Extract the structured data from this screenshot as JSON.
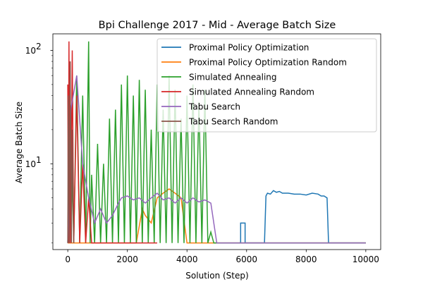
{
  "chart_data": {
    "type": "line",
    "title": "Bpi Challenge 2017 - Mid - Average Batch Size",
    "xlabel": "Solution (Step)",
    "ylabel": "Average Batch Size",
    "xlim": [
      -500,
      10500
    ],
    "ylim": [
      1.75,
      140
    ],
    "yscale": "log",
    "x_ticks": [
      0,
      2000,
      4000,
      6000,
      8000,
      10000
    ],
    "x_tick_labels": [
      "0",
      "2000",
      "4000",
      "6000",
      "8000",
      "10000"
    ],
    "y_ticks": [
      10,
      100
    ],
    "y_tick_labels": [
      "10^1",
      "10^2"
    ],
    "y_tick_base": "10",
    "y_tick_exponents": [
      "1",
      "2"
    ],
    "grid": false,
    "legend_position": "top-right",
    "series": [
      {
        "name": "Proximal Policy Optimization",
        "color": "#1f77b4",
        "x": [
          5750,
          5800,
          5800,
          5950,
          5950,
          6600,
          6650,
          6700,
          6800,
          6900,
          7000,
          7100,
          7200,
          7400,
          7600,
          7800,
          8000,
          8200,
          8400,
          8500,
          8600,
          8700,
          8750,
          8900,
          9000,
          9200,
          10000
        ],
        "y": [
          2.0,
          2.0,
          3.0,
          3.0,
          2.0,
          2.0,
          5.2,
          5.5,
          5.4,
          5.8,
          5.6,
          5.7,
          5.5,
          5.5,
          5.4,
          5.4,
          5.3,
          5.5,
          5.4,
          5.2,
          5.2,
          5.0,
          2.0,
          2.0,
          2.0,
          2.0,
          2.0
        ]
      },
      {
        "name": "Proximal Policy Optimization Random",
        "color": "#ff7f0e",
        "x": [
          0,
          100,
          200,
          300,
          2200,
          2300,
          2500,
          2600,
          2800,
          3000,
          3200,
          3400,
          3600,
          3800,
          4000,
          6000,
          6300,
          6500,
          7500,
          8000,
          8500,
          9000,
          10000
        ],
        "y": [
          2.0,
          2.0,
          2.0,
          2.0,
          2.0,
          2.0,
          4.0,
          3.5,
          3.0,
          5.0,
          5.5,
          6.0,
          5.5,
          5.0,
          2.0,
          2.0,
          2.0,
          2.0,
          2.0,
          2.0,
          2.0,
          2.0,
          2.0
        ]
      },
      {
        "name": "Simulated Annealing",
        "color": "#2ca02c",
        "x": [
          0,
          100,
          200,
          300,
          400,
          500,
          600,
          700,
          750,
          800,
          900,
          1000,
          1100,
          1200,
          1300,
          1400,
          1500,
          1600,
          1700,
          1800,
          1900,
          2000,
          2100,
          2200,
          2300,
          2400,
          2500,
          2600,
          2700,
          2800,
          2900,
          3000,
          3100,
          3200,
          3300,
          3400,
          3500,
          3600,
          3700,
          3800,
          3900,
          4000,
          4100,
          4200,
          4300,
          4400,
          4500,
          4600,
          4700,
          4800,
          4900,
          5000,
          5200,
          5500,
          5800,
          6200,
          6500,
          6800,
          7000,
          7300,
          7600,
          8000,
          8400,
          8800,
          9200,
          9600,
          10000
        ],
        "y": [
          2,
          30,
          2,
          60,
          2,
          40,
          2,
          120,
          2,
          8,
          2,
          15,
          2,
          10,
          2,
          25,
          2,
          30,
          2,
          50,
          2,
          60,
          2,
          40,
          2,
          55,
          2,
          45,
          2,
          20,
          2,
          50,
          2,
          30,
          2,
          60,
          2,
          45,
          2,
          25,
          2,
          40,
          2,
          50,
          2,
          35,
          2,
          45,
          2,
          2.5,
          2,
          2,
          2,
          2,
          2,
          2,
          2,
          2,
          2,
          2,
          2,
          2,
          2,
          2,
          2,
          2,
          2
        ]
      },
      {
        "name": "Simulated Annealing Random",
        "color": "#d62728",
        "x": [
          0,
          20,
          40,
          60,
          80,
          100,
          150,
          200,
          300,
          400,
          500,
          600,
          700,
          800,
          900,
          1000,
          1200,
          1500,
          2000,
          2500,
          3000
        ],
        "y": [
          50,
          2,
          120,
          2,
          80,
          2,
          100,
          2,
          40,
          2,
          10,
          2,
          5,
          2,
          2,
          2,
          2,
          2,
          2,
          2,
          2
        ]
      },
      {
        "name": "Tabu Search",
        "color": "#9467bd",
        "x": [
          0,
          100,
          300,
          500,
          700,
          900,
          1100,
          1300,
          1500,
          1700,
          1800,
          2000,
          2200,
          2400,
          2600,
          2800,
          3000,
          3200,
          3400,
          3600,
          3800,
          4000,
          4200,
          4400,
          4600,
          4800,
          5000,
          5500,
          6000,
          6500,
          6800,
          7000,
          7500,
          8000,
          8500,
          9000,
          9500,
          10000
        ],
        "y": [
          2.0,
          30,
          60,
          10,
          5,
          3,
          4,
          3,
          3.5,
          4.5,
          5.0,
          5.2,
          4.8,
          5.0,
          4.5,
          5.0,
          5.5,
          4.8,
          5.0,
          4.5,
          5.0,
          4.5,
          5.0,
          4.6,
          4.8,
          4.5,
          2.0,
          2.0,
          2.0,
          2.0,
          2.0,
          2.0,
          2.0,
          2.0,
          2.0,
          2.0,
          2.0,
          2.0
        ]
      },
      {
        "name": "Tabu Search Random",
        "color": "#8c564b",
        "x": [
          0,
          20,
          50,
          80,
          120,
          150,
          200
        ],
        "y": [
          2,
          40,
          2,
          80,
          2,
          20,
          2
        ]
      }
    ]
  }
}
